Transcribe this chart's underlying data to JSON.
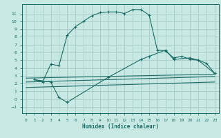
{
  "xlabel": "Humidex (Indice chaleur)",
  "bg_color": "#c8e8e4",
  "grid_color": "#a8ccc8",
  "line_color": "#1a6b65",
  "xlim": [
    -0.5,
    23.5
  ],
  "ylim": [
    -1.8,
    12.2
  ],
  "xticks": [
    0,
    1,
    2,
    3,
    4,
    5,
    6,
    7,
    8,
    9,
    10,
    11,
    12,
    13,
    14,
    15,
    16,
    17,
    18,
    19,
    20,
    21,
    22,
    23
  ],
  "yticks": [
    -1,
    0,
    1,
    2,
    3,
    4,
    5,
    6,
    7,
    8,
    9,
    10,
    11
  ],
  "line1_x": [
    1,
    2,
    3,
    4,
    5,
    6,
    7,
    8,
    9,
    10,
    11,
    12,
    13,
    14,
    15,
    16,
    17,
    18,
    19,
    20,
    21,
    22,
    23
  ],
  "line1_y": [
    2.5,
    2.2,
    4.5,
    4.3,
    8.2,
    9.3,
    10.0,
    10.7,
    11.1,
    11.2,
    11.2,
    11.0,
    11.5,
    11.5,
    10.8,
    6.3,
    6.2,
    5.3,
    5.5,
    5.1,
    5.0,
    4.6,
    3.3
  ],
  "line2_x": [
    1,
    3,
    4,
    5,
    10,
    14,
    15,
    17,
    18,
    20,
    21,
    23
  ],
  "line2_y": [
    2.5,
    2.2,
    0.2,
    -0.4,
    2.8,
    5.1,
    5.5,
    6.3,
    5.1,
    5.3,
    5.0,
    3.3
  ],
  "line3_x": [
    0,
    23
  ],
  "line3_y": [
    2.7,
    3.2
  ],
  "line4_x": [
    0,
    23
  ],
  "line4_y": [
    2.2,
    2.9
  ],
  "line5_x": [
    0,
    23
  ],
  "line5_y": [
    1.5,
    2.2
  ]
}
